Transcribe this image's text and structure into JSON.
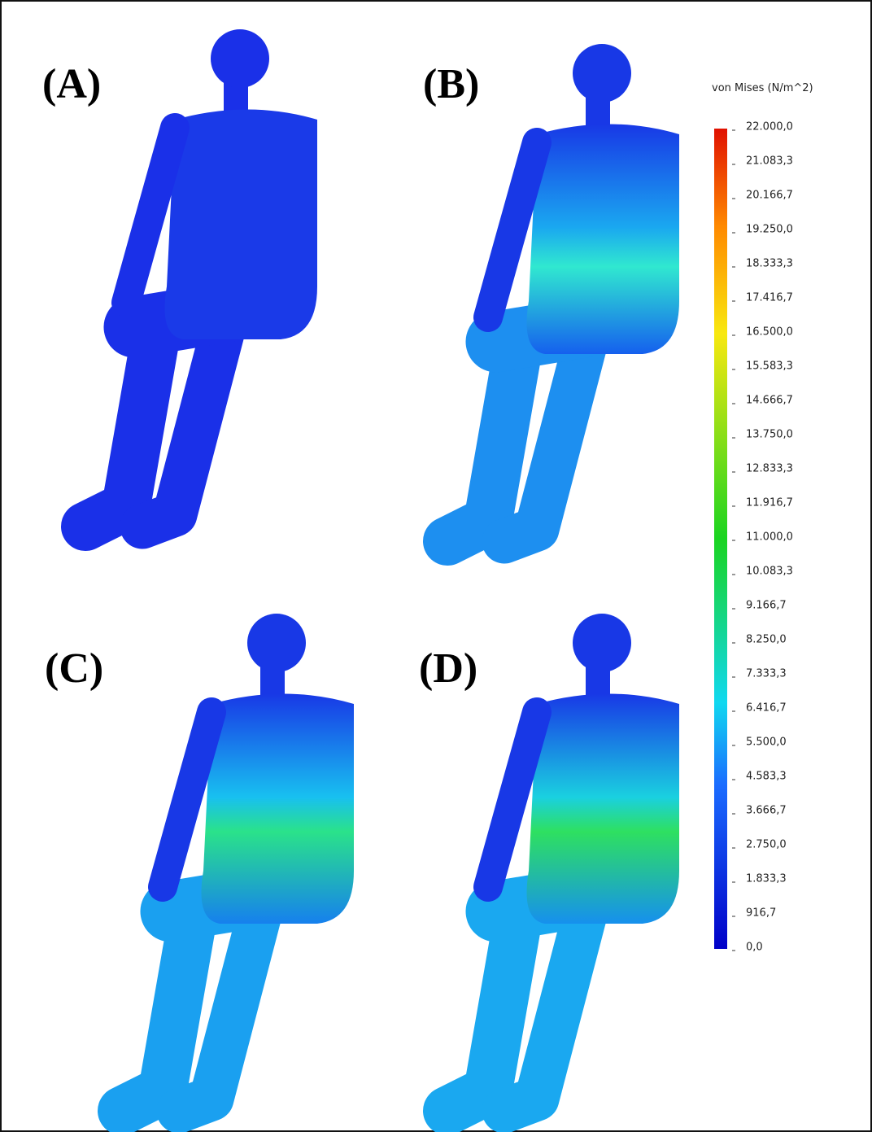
{
  "panels": [
    {
      "label": "(A)"
    },
    {
      "label": "(B)"
    },
    {
      "label": "(C)"
    },
    {
      "label": "(D)"
    }
  ],
  "legend": {
    "title": "von Mises (N/m^2)",
    "ticks": [
      "22.000,0",
      "21.083,3",
      "20.166,7",
      "19.250,0",
      "18.333,3",
      "17.416,7",
      "16.500,0",
      "15.583,3",
      "14.666,7",
      "13.750,0",
      "12.833,3",
      "11.916,7",
      "11.000,0",
      "10.083,3",
      "9.166,7",
      "8.250,0",
      "7.333,3",
      "6.416,7",
      "5.500,0",
      "4.583,3",
      "3.666,7",
      "2.750,0",
      "1.833,3",
      "916,7",
      "0,0"
    ]
  }
}
